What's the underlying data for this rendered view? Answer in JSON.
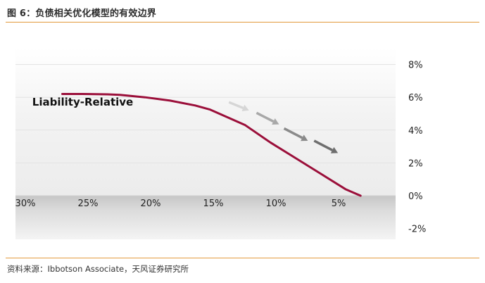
{
  "figure": {
    "title": "图 6：负债相关优化模型的有效边界",
    "source": "资料来源：Ibbotson Associate，天风证券研究所"
  },
  "chart_data": {
    "type": "line",
    "title": "",
    "xlabel": "",
    "ylabel": "",
    "x_ticks": [
      "30%",
      "25%",
      "20%",
      "15%",
      "10%",
      "5%"
    ],
    "x_tick_values": [
      30,
      25,
      20,
      15,
      10,
      5
    ],
    "x_reversed": true,
    "xlim": [
      0,
      30
    ],
    "y_ticks": [
      "8%",
      "6%",
      "4%",
      "2%",
      "0%",
      "-2%"
    ],
    "y_tick_values": [
      8,
      6,
      4,
      2,
      0,
      -2
    ],
    "ylim": [
      -2,
      8
    ],
    "grid": "horizontal",
    "colors": {
      "line": "#9b0f3a",
      "arrows": [
        "#d6d6d6",
        "#a8a8a8",
        "#8a8a8a",
        "#6e6e6e"
      ],
      "rule": "#e39a3b"
    },
    "series": [
      {
        "name": "Liability-Relative",
        "points": [
          [
            26.6,
            6.2
          ],
          [
            25,
            6.2
          ],
          [
            23,
            6.18
          ],
          [
            22,
            6.15
          ],
          [
            20,
            6.0
          ],
          [
            18,
            5.8
          ],
          [
            16,
            5.5
          ],
          [
            14.8,
            5.25
          ],
          [
            12,
            4.3
          ],
          [
            10,
            3.25
          ],
          [
            8,
            2.3
          ],
          [
            6,
            1.35
          ],
          [
            4,
            0.4
          ],
          [
            2.8,
            0.0
          ]
        ]
      }
    ],
    "annotations": [
      {
        "text": "Liability-Relative",
        "anchor_x": 29,
        "anchor_y": 5.5
      }
    ],
    "arrows": [
      {
        "from": [
          13.3,
          5.7
        ],
        "to": [
          11.7,
          5.2
        ]
      },
      {
        "from": [
          11.1,
          5.05
        ],
        "to": [
          9.3,
          4.35
        ]
      },
      {
        "from": [
          8.9,
          4.1
        ],
        "to": [
          7.0,
          3.35
        ]
      },
      {
        "from": [
          6.5,
          3.35
        ],
        "to": [
          4.6,
          2.6
        ]
      }
    ]
  }
}
